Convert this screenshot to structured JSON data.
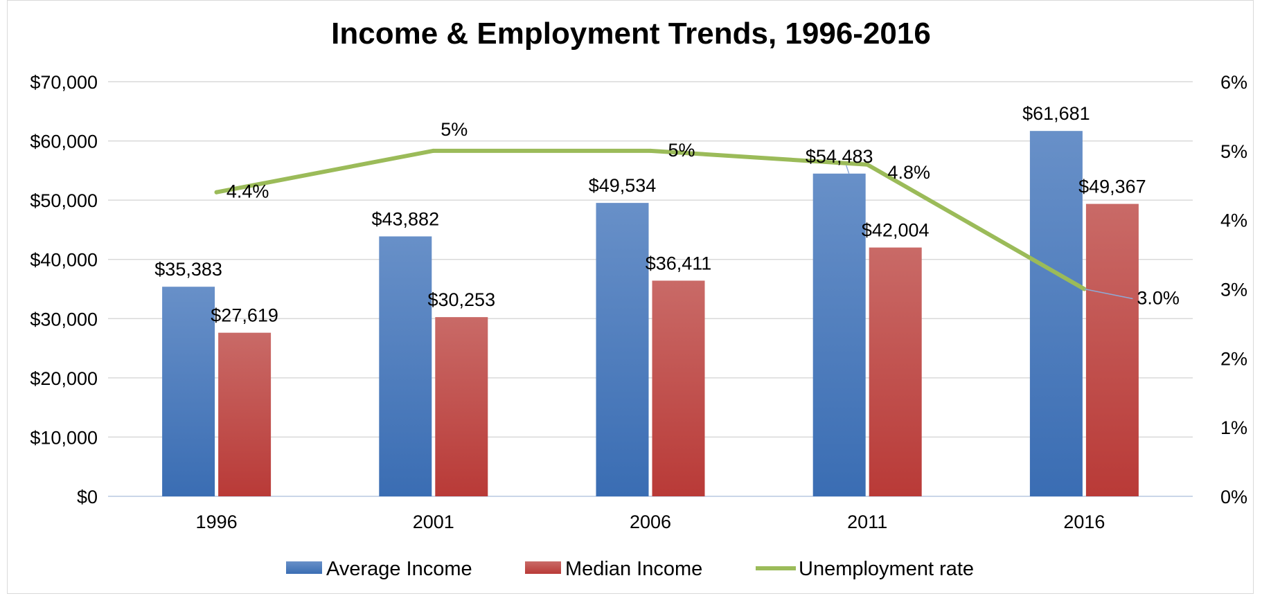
{
  "chart_data": {
    "type": "bar",
    "title": "Income & Employment Trends, 1996-2016",
    "categories": [
      "1996",
      "2001",
      "2006",
      "2011",
      "2016"
    ],
    "series": [
      {
        "name": "Average Income",
        "type": "bar",
        "axis": "left",
        "color": "#4a7ebf",
        "values": [
          35383,
          43882,
          49534,
          54483,
          61681
        ],
        "labels": [
          "$35,383",
          "$43,882",
          "$49,534",
          "$54,483",
          "$61,681"
        ]
      },
      {
        "name": "Median Income",
        "type": "bar",
        "axis": "left",
        "color": "#c0504d",
        "values": [
          27619,
          30253,
          36411,
          42004,
          49367
        ],
        "labels": [
          "$27,619",
          "$30,253",
          "$36,411",
          "$42,004",
          "$49,367"
        ]
      },
      {
        "name": "Unemployment rate",
        "type": "line",
        "axis": "right",
        "color": "#9bbb59",
        "values": [
          4.4,
          5.0,
          5.0,
          4.8,
          3.0
        ],
        "labels": [
          "4.4%",
          "5%",
          "5%",
          "4.8%",
          "3.0%"
        ]
      }
    ],
    "left_axis": {
      "ylim": [
        0,
        70000
      ],
      "ticks": [
        0,
        10000,
        20000,
        30000,
        40000,
        50000,
        60000,
        70000
      ],
      "tick_labels": [
        "$0",
        "$10,000",
        "$20,000",
        "$30,000",
        "$40,000",
        "$50,000",
        "$60,000",
        "$70,000"
      ]
    },
    "right_axis": {
      "ylim": [
        0,
        6
      ],
      "ticks": [
        0,
        1,
        2,
        3,
        4,
        5,
        6
      ],
      "tick_labels": [
        "0%",
        "1%",
        "2%",
        "3%",
        "4%",
        "5%",
        "6%"
      ]
    },
    "grid": true,
    "legend_position": "bottom"
  }
}
